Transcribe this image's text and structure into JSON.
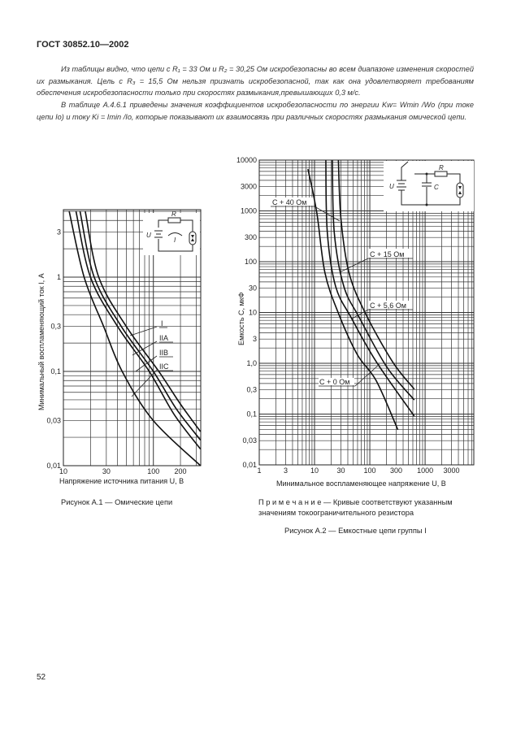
{
  "header": {
    "title": "ГОСТ 30852.10—2002"
  },
  "text": {
    "p1": "Из таблицы видно, что цепи с R₁ = 33 Ом и R₂ = 30,25 Ом искробезопасны во всем диапазоне изменения скоростей их размыкания. Цель с R₃ = 15,5 Ом нельзя признать искробезопасной, так как она удовлетворяет требованиям обеспечения искробезопасности только при скоростях размыкания,превышающих 0,3 м/с.",
    "p2": "В таблице А.4.6.1 приведены значения коэффициентов искробезопасности по энергии Kw= Wmin /Wo (при токе цепи Iо) и току Ki = Imin /Io, которые показывают их взаимосвязь при различных скоростях размыкания омической цепи."
  },
  "figure1": {
    "caption": "Рисунок А.1 — Омические цепи",
    "inset": {
      "r": "R",
      "u": "U",
      "i": "I"
    }
  },
  "figure2": {
    "note": "П р и м е ч а н и е — Кривые соответствуют указанным значениям токоограничительного резистора",
    "caption": "Рисунок А.2 — Емкостные цепи группы I",
    "inset": {
      "r": "R",
      "u": "U",
      "c": "C"
    }
  },
  "page_number": "52",
  "chart_data": [
    {
      "type": "line",
      "xscale": "log",
      "yscale": "log",
      "xlabel": "Напряжение источника питания U, В",
      "ylabel": "Минимальный воспламеняющий ток I, А",
      "xlim": [
        10,
        336
      ],
      "ylim": [
        0.01,
        5.2
      ],
      "grid": true,
      "xticks": [
        10,
        30,
        100,
        200
      ],
      "xtick_labels": [
        "10",
        "30",
        "100",
        "200"
      ],
      "yticks": [
        0.01,
        0.03,
        0.1,
        0.3,
        1,
        3
      ],
      "ytick_labels": [
        "0,01",
        "0,03",
        "0,1",
        "0,3",
        "1",
        "3"
      ],
      "series": [
        {
          "name": "I",
          "points": [
            [
              17.5,
              5
            ],
            [
              24.7,
              1
            ],
            [
              50,
              0.3
            ],
            [
              115,
              0.1
            ],
            [
              200,
              0.045
            ],
            [
              334,
              0.023
            ]
          ]
        },
        {
          "name": "IIA",
          "points": [
            [
              15.3,
              5
            ],
            [
              22,
              1
            ],
            [
              44,
              0.3
            ],
            [
              100,
              0.1
            ],
            [
              180,
              0.04
            ],
            [
              334,
              0.0187
            ]
          ]
        },
        {
          "name": "IIB",
          "points": [
            [
              13.8,
              5
            ],
            [
              20,
              1
            ],
            [
              40,
              0.3
            ],
            [
              90,
              0.1
            ],
            [
              170,
              0.035
            ],
            [
              334,
              0.015
            ]
          ]
        },
        {
          "name": "IIC",
          "points": [
            [
              11.6,
              5
            ],
            [
              17,
              1
            ],
            [
              28,
              0.3
            ],
            [
              45,
              0.1
            ],
            [
              100,
              0.03
            ],
            [
              334,
              0.01
            ]
          ]
        }
      ]
    },
    {
      "type": "line",
      "xscale": "log",
      "yscale": "log",
      "xlabel": "Минимальное воспламеняющее напряжение U, В",
      "ylabel": "Емкость C, мкФ",
      "xlim": [
        1,
        7600
      ],
      "ylim": [
        0.01,
        10000
      ],
      "grid": true,
      "xticks": [
        1,
        3,
        10,
        30,
        100,
        300,
        1000,
        3000
      ],
      "xtick_labels": [
        "1",
        "3",
        "10",
        "30",
        "100",
        "300",
        "1000",
        "3000"
      ],
      "yticks": [
        0.01,
        0.03,
        0.1,
        0.3,
        1,
        3,
        10,
        30,
        100,
        300,
        1000,
        3000,
        10000
      ],
      "ytick_labels": [
        "0,01",
        "0,03",
        "0,1",
        "0,3",
        "1,0",
        "3",
        "10",
        "30",
        "100",
        "300",
        "1000",
        "3000",
        "10000"
      ],
      "series": [
        {
          "name": "C + 40 Ом",
          "points": [
            [
              27,
              10000
            ],
            [
              30,
              710
            ],
            [
              42,
              61
            ],
            [
              83,
              9.7
            ],
            [
              258,
              1.07
            ],
            [
              637,
              0.31
            ]
          ]
        },
        {
          "name": "C + 15 Ом",
          "points": [
            [
              21,
              10000
            ],
            [
              22.7,
              385
            ],
            [
              33.8,
              33
            ],
            [
              66,
              7.6
            ],
            [
              205,
              0.83
            ],
            [
              637,
              0.19
            ]
          ]
        },
        {
          "name": "C + 5,6 Ом",
          "points": [
            [
              16,
              10000
            ],
            [
              17,
              385
            ],
            [
              24,
              33
            ],
            [
              47,
              7.6
            ],
            [
              131,
              1.07
            ],
            [
              637,
              0.091
            ]
          ]
        },
        {
          "name": "C + 0 Ом",
          "points": [
            [
              7.6,
              6670
            ],
            [
              11,
              912
            ],
            [
              15.4,
              61
            ],
            [
              27,
              9.7
            ],
            [
              59,
              1.5
            ],
            [
              131,
              0.45
            ],
            [
              322,
              0.049
            ]
          ]
        }
      ]
    }
  ]
}
